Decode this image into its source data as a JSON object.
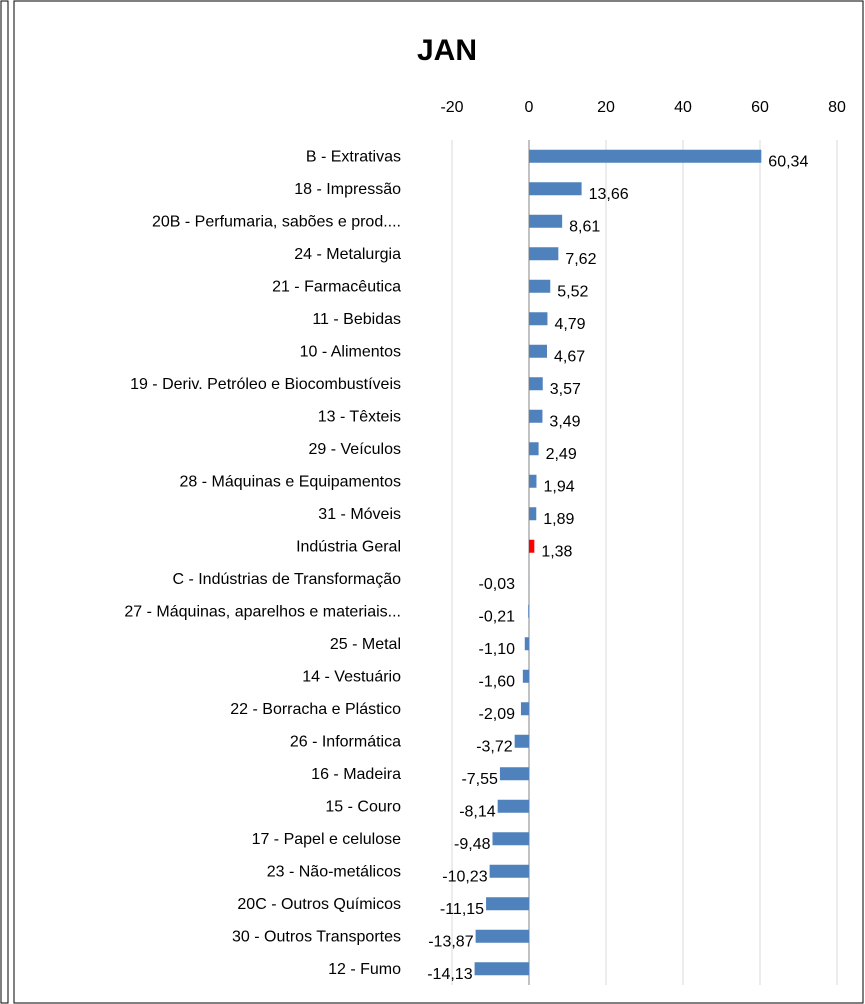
{
  "chart_data": {
    "type": "bar",
    "orientation": "horizontal",
    "title": "JAN",
    "categories": [
      "B - Extrativas",
      "18 - Impressão",
      "20B - Perfumaria, sabões e prod....",
      "24 - Metalurgia",
      "21 - Farmacêutica",
      "11 - Bebidas",
      "10 - Alimentos",
      "19 - Deriv. Petróleo e Biocombustíveis",
      "13 - Têxteis",
      "29 - Veículos",
      "28 - Máquinas e Equipamentos",
      "31 - Móveis",
      "Indústria Geral",
      "C - Indústrias de Transformação",
      "27 - Máquinas, aparelhos e materiais...",
      "25 - Metal",
      "14 - Vestuário",
      "22 - Borracha e Plástico",
      "26 - Informática",
      "16 - Madeira",
      "15 - Couro",
      "17 - Papel e celulose",
      "23 - Não-metálicos",
      "20C - Outros Químicos",
      "30 - Outros Transportes",
      "12 - Fumo"
    ],
    "values": [
      60.34,
      13.66,
      8.61,
      7.62,
      5.52,
      4.79,
      4.67,
      3.57,
      3.49,
      2.49,
      1.94,
      1.89,
      1.38,
      -0.03,
      -0.21,
      -1.1,
      -1.6,
      -2.09,
      -3.72,
      -7.55,
      -8.14,
      -9.48,
      -10.23,
      -11.15,
      -13.87,
      -14.13
    ],
    "value_labels": [
      "60,34",
      "13,66",
      "8,61",
      "7,62",
      "5,52",
      "4,79",
      "4,67",
      "3,57",
      "3,49",
      "2,49",
      "1,94",
      "1,89",
      "1,38",
      "-0,03",
      "-0,21",
      "-1,10",
      "-1,60",
      "-2,09",
      "-3,72",
      "-7,55",
      "-8,14",
      "-9,48",
      "-10,23",
      "-11,15",
      "-13,87",
      "-14,13"
    ],
    "colors": [
      "#4f81bd",
      "#4f81bd",
      "#4f81bd",
      "#4f81bd",
      "#4f81bd",
      "#4f81bd",
      "#4f81bd",
      "#4f81bd",
      "#4f81bd",
      "#4f81bd",
      "#4f81bd",
      "#4f81bd",
      "#ff0000",
      "#4f81bd",
      "#4f81bd",
      "#4f81bd",
      "#4f81bd",
      "#4f81bd",
      "#4f81bd",
      "#4f81bd",
      "#4f81bd",
      "#4f81bd",
      "#4f81bd",
      "#4f81bd",
      "#4f81bd",
      "#4f81bd"
    ],
    "xlim": [
      -20,
      80
    ],
    "xticks": [
      -20,
      0,
      20,
      40,
      60,
      80
    ],
    "grid": true
  }
}
